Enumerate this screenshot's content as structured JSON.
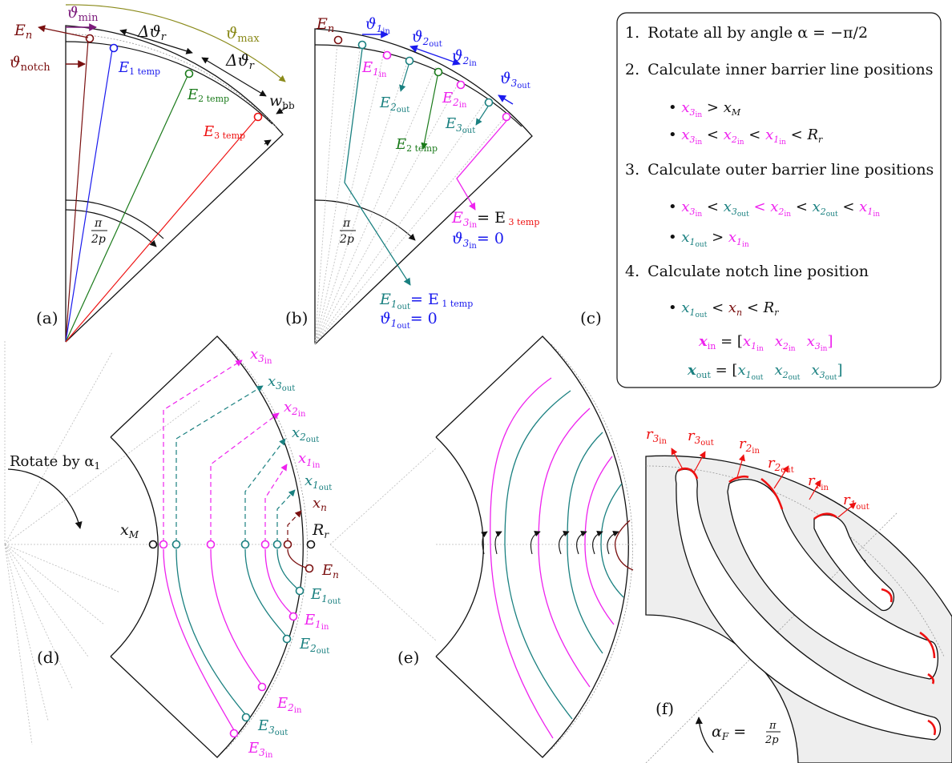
{
  "colors": {
    "black": "#111111",
    "darkred": "#7a1010",
    "olive": "#8a8a1a",
    "purple": "#7b1a7b",
    "blue": "#1a1aee",
    "green": "#1a7a1a",
    "red": "#ee1111",
    "teal": "#1a8080",
    "magenta": "#ee22ee",
    "gray": "#bbbbbb",
    "fill": "#eeeeee"
  },
  "panels": {
    "a": "(a)",
    "b": "(b)",
    "c": "(c)",
    "d": "(d)",
    "e": "(e)",
    "f": "(f)"
  },
  "steps": [
    {
      "num": "1.",
      "text": "Rotate all by angle α = −π/2"
    },
    {
      "num": "2.",
      "text": "Calculate inner barrier line positions"
    },
    {
      "num": "3.",
      "text": "Calculate outer barrier line positions"
    },
    {
      "num": "4.",
      "text": "Calculate notch line position"
    }
  ],
  "panel_a": {
    "En": "E",
    "theta_min": "ϑ",
    "min": "min",
    "theta_notch": "ϑ",
    "notch": "notch",
    "dtheta": "Δϑ",
    "r": "r",
    "theta_max": "ϑ",
    "max": "max",
    "wbb": "w",
    "bb": "bb",
    "E1": "E",
    "E2": "E",
    "E3": "E",
    "temp1": "1 temp",
    "temp2": "2 temp",
    "temp3": "3 temp",
    "pi": "π",
    "p2": "2p"
  },
  "panel_b": {
    "E3in_eq": "= E",
    "theta3in": "ϑ",
    "theta_eq0": "= 0",
    "E1out_eq": "= E",
    "theta1out_eq": "= 0"
  },
  "panel_d": {
    "rotate": "Rotate by α",
    "xM": "x",
    "Rr": "R"
  },
  "panel_f": {
    "alphaF": "α",
    "eq": " = "
  }
}
